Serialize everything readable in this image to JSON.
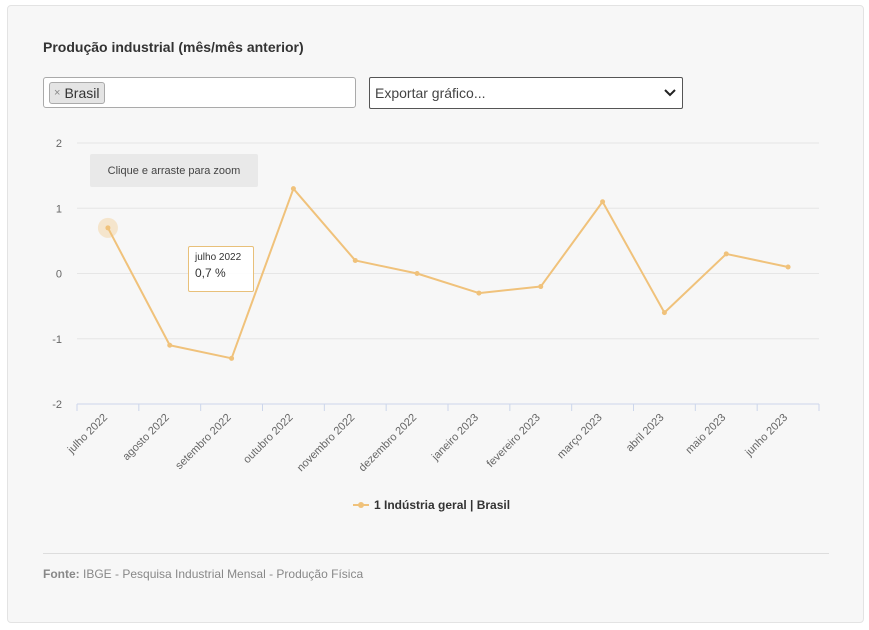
{
  "header": {
    "title": "Produção industrial (mês/mês anterior)"
  },
  "filters": {
    "tag_label": "Brasil",
    "tag_remove": "×",
    "export_value": "Exportar gráfico..."
  },
  "chart_ui": {
    "zoom_hint": "Clique e arraste para zoom",
    "tooltip": {
      "x": "julho 2022",
      "y": "0,7 %"
    }
  },
  "footer": {
    "source_label": "Fonte:",
    "source_text": "IBGE - Pesquisa Industrial Mensal - Produção Física"
  },
  "colors": {
    "series": "#f0c27b",
    "grid": "#e6e6e6",
    "axis": "#ccd6eb"
  },
  "chart_data": {
    "type": "line",
    "title": "Produção industrial (mês/mês anterior)",
    "xlabel": "",
    "ylabel": "",
    "categories": [
      "julho 2022",
      "agosto 2022",
      "setembro 2022",
      "outubro 2022",
      "novembro 2022",
      "dezembro 2022",
      "janeiro 2023",
      "fevereiro 2023",
      "março 2023",
      "abril 2023",
      "maio 2023",
      "junho 2023"
    ],
    "series": [
      {
        "name": "1 Indústria geral | Brasil",
        "values": [
          0.7,
          -1.1,
          -1.3,
          1.3,
          0.2,
          0.0,
          -0.3,
          -0.2,
          1.1,
          -0.6,
          0.3,
          0.1
        ]
      }
    ],
    "ylim": [
      -2,
      2
    ],
    "yticks": [
      2,
      1,
      0,
      -1,
      -2
    ],
    "grid": true,
    "legend": "bottom-center"
  }
}
